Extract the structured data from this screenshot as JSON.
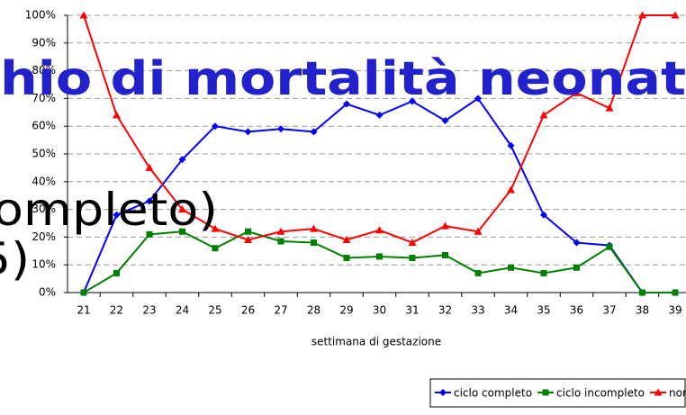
{
  "chart_data": {
    "type": "line",
    "x_label": "settimana di gestazione",
    "categories": [
      "21",
      "22",
      "23",
      "24",
      "25",
      "26",
      "27",
      "28",
      "29",
      "30",
      "31",
      "32",
      "33",
      "34",
      "35",
      "36",
      "37",
      "38",
      "39"
    ],
    "series": [
      {
        "name": "ciclo completo",
        "color": "#0000ff",
        "marker": "diamond",
        "values": [
          0,
          28,
          33,
          48,
          60,
          58,
          59,
          58,
          68,
          64,
          69,
          62,
          70,
          53,
          28,
          18,
          17,
          0,
          0
        ]
      },
      {
        "name": "ciclo incompleto",
        "color": "#008000",
        "marker": "square",
        "values": [
          0,
          7,
          21,
          22,
          16,
          22,
          18.5,
          18,
          12.5,
          13,
          12.5,
          13.5,
          7,
          9,
          7,
          9,
          16.5,
          0,
          0
        ]
      },
      {
        "name": "non effettuata",
        "color": "#ff0000",
        "marker": "triangle",
        "values": [
          100,
          64,
          45,
          30,
          23,
          19,
          22,
          23,
          19,
          22.5,
          18,
          24,
          22,
          37,
          64,
          72,
          66.5,
          100,
          100
        ]
      }
    ],
    "ylim": [
      0,
      100
    ],
    "yticks": [
      {
        "value": 0,
        "label": "0%"
      },
      {
        "value": 10,
        "label": "10%"
      },
      {
        "value": 20,
        "label": "20%"
      },
      {
        "value": 30,
        "label": "30%"
      },
      {
        "value": 40,
        "label": "40%"
      },
      {
        "value": 50,
        "label": "50%"
      },
      {
        "value": 60,
        "label": "60%"
      },
      {
        "value": 70,
        "label": "70%"
      },
      {
        "value": 80,
        "label": "80%"
      },
      {
        "value": 90,
        "label": "90%"
      },
      {
        "value": 100,
        "label": "100%"
      }
    ],
    "grid": true,
    "legend": "bottom-right",
    "annotations": [
      "hio di mortalità neonat",
      "ompleto)",
      "5)"
    ]
  }
}
